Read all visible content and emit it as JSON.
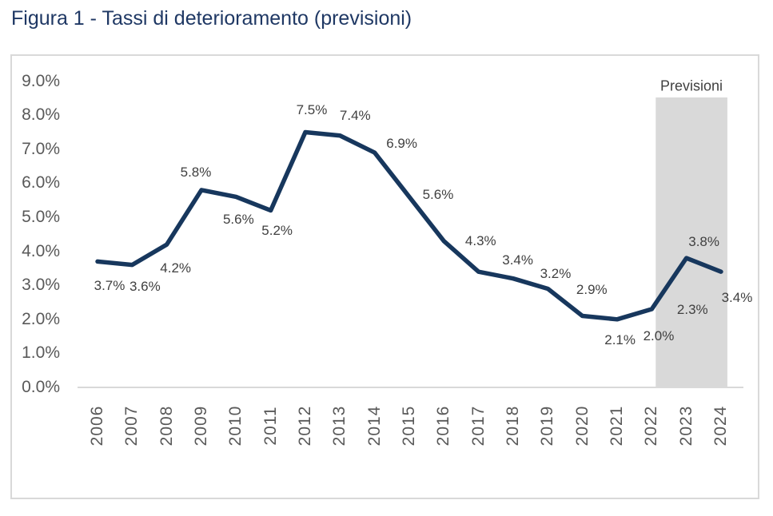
{
  "page": {
    "title": "Figura 1 - Tassi di deterioramento (previsioni)"
  },
  "colors": {
    "title": "#1F3864",
    "line": "#17375D",
    "data_label": "#404040",
    "axis_label": "#595959",
    "forecast_fill": "#D9D9D9",
    "frame_border": "#D9D9D9",
    "axis_line": "#D9D9D9",
    "background": "#FFFFFF"
  },
  "chart_data": {
    "type": "line",
    "title": "Figura 1 - Tassi di deterioramento (previsioni)",
    "categories": [
      "2006",
      "2007",
      "2008",
      "2009",
      "2010",
      "2011",
      "2012",
      "2013",
      "2014",
      "2015",
      "2016",
      "2017",
      "2018",
      "2019",
      "2020",
      "2021",
      "2022",
      "2023",
      "2024"
    ],
    "series": [
      {
        "name": "Tassi di deterioramento",
        "values": [
          3.7,
          3.6,
          4.2,
          5.8,
          5.6,
          5.2,
          7.5,
          7.4,
          6.9,
          5.6,
          4.3,
          3.4,
          3.2,
          2.9,
          2.1,
          2.0,
          2.3,
          3.8,
          3.4
        ]
      }
    ],
    "data_labels": [
      "3.7%",
      "3.6%",
      "4.2%",
      "5.8%",
      "5.6%",
      "5.2%",
      "7.5%",
      "7.4%",
      "6.9%",
      "5.6%",
      "4.3%",
      "3.4%",
      "3.2%",
      "2.9%",
      "2.1%",
      "2.0%",
      "2.3%",
      "3.8%",
      "3.4%"
    ],
    "y_ticks": [
      "9.0%",
      "8.0%",
      "7.0%",
      "6.0%",
      "5.0%",
      "4.0%",
      "3.0%",
      "2.0%",
      "1.0%",
      "0.0%"
    ],
    "ylim": [
      0,
      9
    ],
    "xlabel": "",
    "ylabel": "",
    "grid": false,
    "legend": "none",
    "annotation": {
      "label": "Previsioni",
      "start_category": "2022",
      "end_category": "2024"
    }
  }
}
